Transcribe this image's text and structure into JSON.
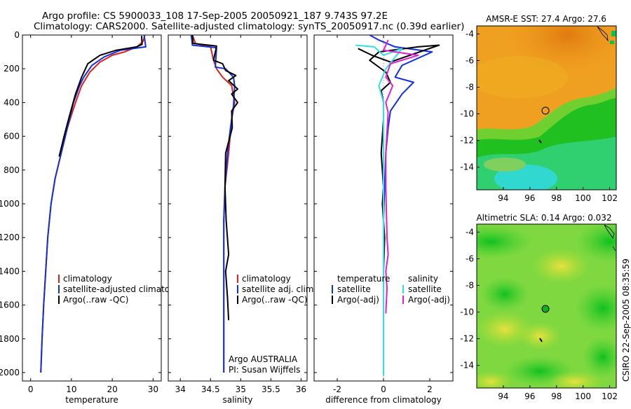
{
  "title_line1": "Argo profile: CS 5900033_108 17-Sep-2005 20050921_187 9.743S 97.2E",
  "title_line2": "Climatology: CARS2000. Satellite-adjusted climatology: synTS_20050917.nc (0.39d earlier)",
  "credit": "CSIRO 22-Sep-2005 08:35:59",
  "colors": {
    "clim": "#e0201c",
    "sat": "#1030e0",
    "argo": "#000000",
    "cyan": "#30e0e8",
    "magenta": "#e020d0"
  },
  "chart_data": [
    {
      "type": "line",
      "id": "temperature",
      "xlabel": "temperature",
      "xlim": [
        -2,
        32
      ],
      "ylim": [
        2050,
        0
      ],
      "xticks": [
        0,
        10,
        20,
        30
      ],
      "yticks": [
        0,
        200,
        400,
        600,
        800,
        1000,
        1200,
        1400,
        1600,
        1800,
        2000
      ],
      "legend": [
        "climatology",
        "satellite-adjusted climatology",
        "Argo(..raw -QC)"
      ],
      "series": [
        {
          "name": "climatology",
          "color": "clim",
          "points": [
            [
              28,
              0
            ],
            [
              27.5,
              40
            ],
            [
              26,
              70
            ],
            [
              23,
              100
            ],
            [
              20,
              120
            ],
            [
              17,
              160
            ],
            [
              14.5,
              220
            ],
            [
              12.5,
              300
            ],
            [
              11,
              400
            ],
            [
              9,
              550
            ],
            [
              7.5,
              700
            ],
            [
              6,
              850
            ],
            [
              5,
              1000
            ],
            [
              4.2,
              1200
            ],
            [
              3.7,
              1400
            ],
            [
              3.2,
              1600
            ],
            [
              2.8,
              1800
            ],
            [
              2.5,
              2000
            ]
          ]
        },
        {
          "name": "satellite-adjusted climatology",
          "color": "sat",
          "points": [
            [
              27.8,
              0
            ],
            [
              28.2,
              70
            ],
            [
              22,
              90
            ],
            [
              18,
              130
            ],
            [
              15,
              180
            ],
            [
              13,
              250
            ],
            [
              12,
              300
            ],
            [
              10.5,
              400
            ],
            [
              9,
              550
            ],
            [
              7.5,
              700
            ],
            [
              6,
              850
            ],
            [
              5,
              1000
            ],
            [
              4.2,
              1200
            ],
            [
              3.7,
              1400
            ],
            [
              3.2,
              1600
            ],
            [
              2.8,
              1800
            ],
            [
              2.5,
              2000
            ]
          ]
        },
        {
          "name": "Argo(..raw -QC)",
          "color": "argo",
          "points": [
            [
              27.2,
              5
            ],
            [
              27.3,
              55
            ],
            [
              26,
              70
            ],
            [
              21,
              90
            ],
            [
              17,
              120
            ],
            [
              14,
              170
            ],
            [
              12.5,
              250
            ],
            [
              11,
              350
            ],
            [
              9.5,
              480
            ],
            [
              8.2,
              600
            ],
            [
              7,
              720
            ]
          ]
        }
      ]
    },
    {
      "type": "line",
      "id": "salinity",
      "xlabel": "salinity",
      "xlim": [
        33.8,
        36.1
      ],
      "ylim": [
        2050,
        0
      ],
      "xticks": [
        34,
        34.5,
        35,
        35.5,
        36
      ],
      "legend": [
        "climatology",
        "satellite adj. clim.",
        "Argo(..raw -QC)"
      ],
      "annotation": [
        "Argo AUSTRALIA",
        "PI: Susan Wijffels"
      ],
      "series": [
        {
          "name": "climatology",
          "color": "clim",
          "points": [
            [
              34.2,
              0
            ],
            [
              34.25,
              50
            ],
            [
              34.5,
              70
            ],
            [
              34.55,
              150
            ],
            [
              34.6,
              200
            ],
            [
              34.7,
              250
            ],
            [
              34.85,
              300
            ],
            [
              34.9,
              400
            ],
            [
              34.85,
              500
            ],
            [
              34.8,
              700
            ],
            [
              34.74,
              900
            ],
            [
              34.72,
              1100
            ],
            [
              34.72,
              1300
            ],
            [
              34.72,
              1500
            ],
            [
              34.72,
              1700
            ],
            [
              34.72,
              1900
            ],
            [
              34.72,
              2000
            ]
          ]
        },
        {
          "name": "satellite adj. clim.",
          "color": "sat",
          "points": [
            [
              34.18,
              0
            ],
            [
              34.2,
              60
            ],
            [
              34.6,
              75
            ],
            [
              34.58,
              190
            ],
            [
              34.75,
              200
            ],
            [
              34.88,
              250
            ],
            [
              34.9,
              300
            ],
            [
              34.88,
              420
            ],
            [
              34.83,
              550
            ],
            [
              34.78,
              700
            ],
            [
              34.74,
              900
            ],
            [
              34.72,
              1100
            ],
            [
              34.72,
              1500
            ],
            [
              34.72,
              2000
            ]
          ]
        },
        {
          "name": "Argo(..raw -QC)",
          "color": "argo",
          "points": [
            [
              34.2,
              0
            ],
            [
              34.21,
              50
            ],
            [
              34.6,
              65
            ],
            [
              34.55,
              150
            ],
            [
              34.7,
              170
            ],
            [
              34.75,
              210
            ],
            [
              34.92,
              240
            ],
            [
              34.8,
              270
            ],
            [
              34.95,
              320
            ],
            [
              34.85,
              350
            ],
            [
              34.95,
              400
            ],
            [
              34.85,
              450
            ],
            [
              34.86,
              550
            ],
            [
              34.75,
              700
            ],
            [
              34.74,
              900
            ],
            [
              34.76,
              1100
            ],
            [
              34.8,
              1300
            ],
            [
              34.75,
              1400
            ],
            [
              34.78,
              1550
            ],
            [
              34.8,
              1690
            ]
          ]
        }
      ]
    },
    {
      "type": "line",
      "id": "difference",
      "xlabel": "difference from climatology",
      "xlim": [
        -3,
        3
      ],
      "ylim": [
        2050,
        0
      ],
      "xticks": [
        -2,
        0,
        2
      ],
      "legend": [
        "temperature",
        "satellite",
        "Argo(-adj)",
        "salinity",
        "satellite",
        "Argo(-adj)"
      ],
      "series": [
        {
          "name": "temperature satellite",
          "color": "sat",
          "points": [
            [
              -0.6,
              0
            ],
            [
              -0.2,
              30
            ],
            [
              0.5,
              70
            ],
            [
              2.1,
              100
            ],
            [
              0.8,
              180
            ],
            [
              0.5,
              250
            ],
            [
              1.3,
              280
            ],
            [
              0.8,
              350
            ],
            [
              0.3,
              450
            ],
            [
              0.2,
              550
            ],
            [
              0.1,
              700
            ],
            [
              0.05,
              900
            ],
            [
              0,
              1100
            ],
            [
              0,
              1400
            ],
            [
              0,
              1700
            ]
          ]
        },
        {
          "name": "temperature Argo(-adj)",
          "color": "argo",
          "points": [
            [
              -1.1,
              80
            ],
            [
              -0.5,
              120
            ],
            [
              0.3,
              160
            ],
            [
              2.4,
              60
            ],
            [
              1.5,
              70
            ],
            [
              -0.2,
              100
            ],
            [
              -0.6,
              150
            ],
            [
              0.1,
              220
            ],
            [
              0.3,
              280
            ],
            [
              -0.1,
              330
            ],
            [
              0,
              400
            ],
            [
              0,
              500
            ],
            [
              -0.1,
              700
            ],
            [
              0,
              900
            ],
            [
              -0.05,
              1000
            ],
            [
              0.05,
              1200
            ],
            [
              0,
              1400
            ],
            [
              0,
              1700
            ]
          ]
        },
        {
          "name": "salinity satellite",
          "color": "cyan",
          "points": [
            [
              -1.2,
              60
            ],
            [
              -0.4,
              70
            ],
            [
              0,
              120
            ],
            [
              0.8,
              80
            ],
            [
              0.1,
              200
            ],
            [
              -0.2,
              300
            ],
            [
              0,
              400
            ],
            [
              0,
              500
            ],
            [
              0,
              700
            ],
            [
              0,
              900
            ],
            [
              0,
              1200
            ],
            [
              0,
              1600
            ],
            [
              0,
              2020
            ]
          ]
        },
        {
          "name": "salinity Argo(-adj)",
          "color": "magenta",
          "points": [
            [
              0.2,
              30
            ],
            [
              0,
              90
            ],
            [
              1.5,
              120
            ],
            [
              0.3,
              170
            ],
            [
              0.1,
              250
            ],
            [
              0.4,
              300
            ],
            [
              0.1,
              400
            ],
            [
              0.2,
              460
            ],
            [
              0.1,
              700
            ],
            [
              0.1,
              900
            ],
            [
              0.15,
              1200
            ],
            [
              0.2,
              1300
            ],
            [
              0.1,
              1400
            ],
            [
              0.15,
              1500
            ],
            [
              0.1,
              1650
            ]
          ]
        }
      ]
    },
    {
      "type": "heatmap",
      "id": "sst-map",
      "title": "AMSR-E SST: 27.4 Argo: 27.6",
      "xticks": [
        94,
        96,
        98,
        100,
        102
      ],
      "yticks": [
        -4,
        -6,
        -8,
        -10,
        -12,
        -14
      ],
      "xlim": [
        92,
        102.5
      ],
      "ylim": [
        -15.7,
        -3.4
      ],
      "argo_position": [
        97.2,
        -9.743
      ],
      "marker": "open-circle"
    },
    {
      "type": "heatmap",
      "id": "sla-map",
      "title": "Altimetric SLA: 0.14 Argo: 0.032",
      "xticks": [
        94,
        96,
        98,
        100,
        102
      ],
      "yticks": [
        -4,
        -6,
        -8,
        -10,
        -12,
        -14
      ],
      "xlim": [
        92,
        102.5
      ],
      "ylim": [
        -15.7,
        -3.4
      ],
      "argo_position": [
        97.2,
        -9.743
      ],
      "marker": "filled-circle"
    }
  ]
}
